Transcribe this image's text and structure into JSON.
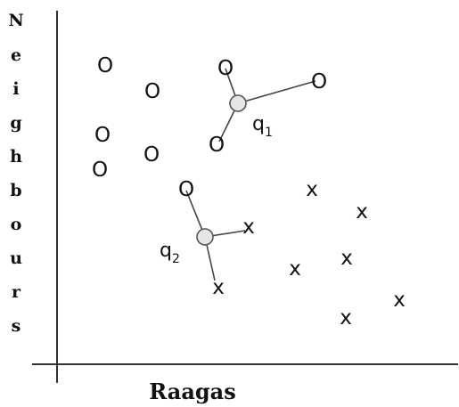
{
  "axes": {
    "y_label_letters": [
      "N",
      "e",
      "i",
      "g",
      "h",
      "b",
      "o",
      "u",
      "r",
      "s"
    ],
    "x_label": "Raagas"
  },
  "markers": {
    "class_o": "O",
    "class_x": "x"
  },
  "queries": [
    {
      "name": "q",
      "sub": "1"
    },
    {
      "name": "q",
      "sub": "2"
    }
  ]
}
